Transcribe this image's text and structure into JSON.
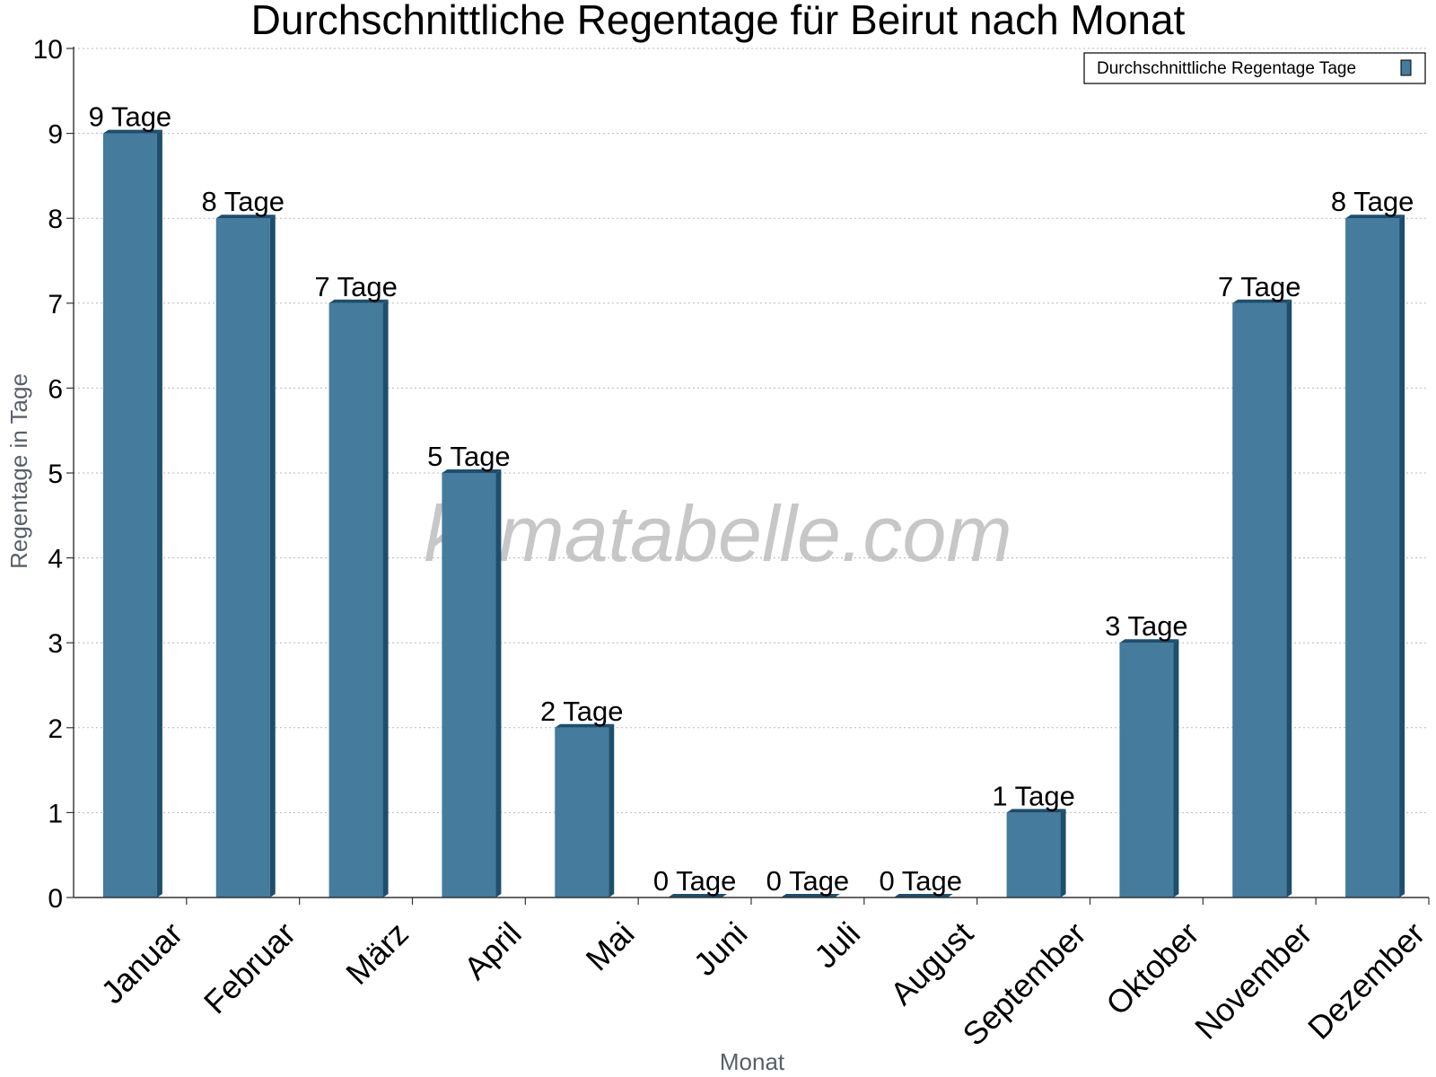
{
  "chart_data": {
    "type": "bar",
    "title": "Durchschnittliche Regentage für Beirut nach Monat",
    "xlabel": "Monat",
    "ylabel": "Regentage in Tage",
    "ylim": [
      0,
      10
    ],
    "yticks": [
      0,
      1,
      2,
      3,
      4,
      5,
      6,
      7,
      8,
      9,
      10
    ],
    "grid": "horizontal dotted",
    "legend_position": "top-right",
    "categories": [
      "Januar",
      "Februar",
      "März",
      "April",
      "Mai",
      "Juni",
      "Juli",
      "August",
      "September",
      "Oktober",
      "November",
      "Dezember"
    ],
    "series": [
      {
        "name": "Durchschnittliche Regentage Tage",
        "values": [
          9,
          8,
          7,
          5,
          2,
          0,
          0,
          0,
          1,
          3,
          7,
          8
        ],
        "labels": [
          "9 Tage",
          "8 Tage",
          "7 Tage",
          "5 Tage",
          "2 Tage",
          "0 Tage",
          "0 Tage",
          "0 Tage",
          "1 Tage",
          "3 Tage",
          "7 Tage",
          "8 Tage"
        ],
        "color": "#457b9d",
        "side_color": "#1d4e6e"
      }
    ],
    "watermark": "klimatabelle.com"
  }
}
